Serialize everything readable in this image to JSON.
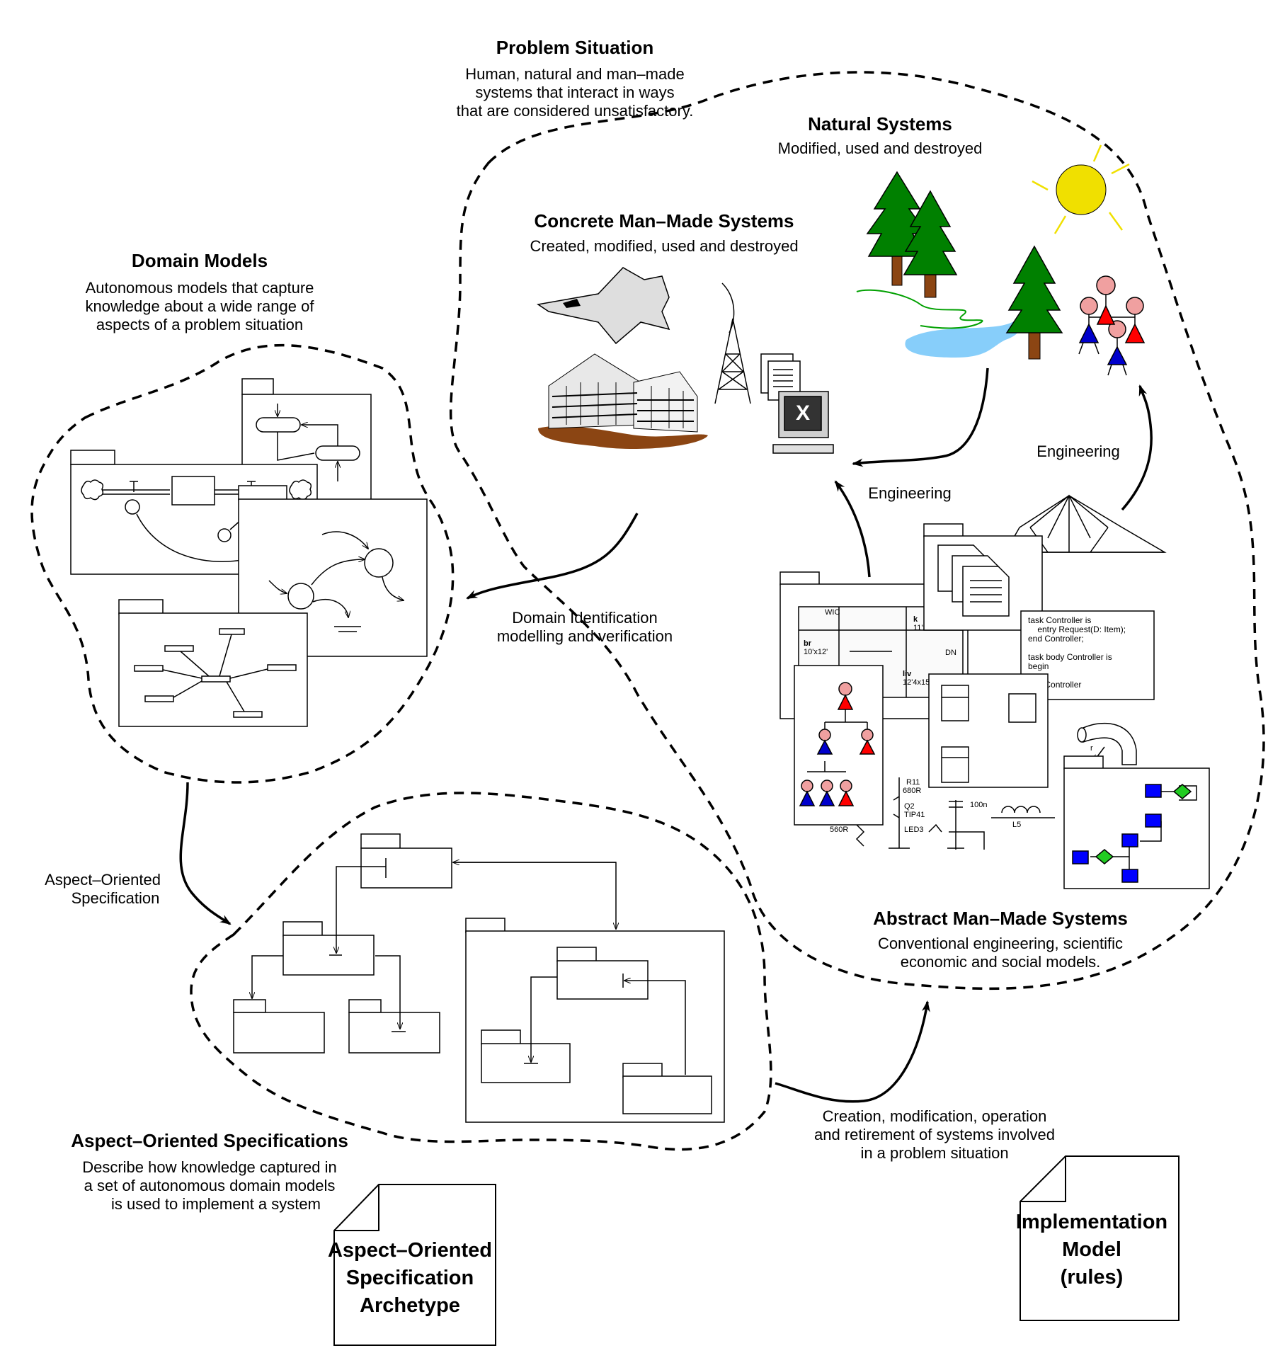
{
  "problem_situation": {
    "title": "Problem Situation",
    "lines": [
      "Human, natural and man–made",
      "systems that interact in ways",
      "that are considered unsatisfactory."
    ]
  },
  "natural_systems": {
    "title": "Natural Systems",
    "lines": [
      "Modified, used and destroyed"
    ]
  },
  "concrete_systems": {
    "title": "Concrete Man–Made Systems",
    "lines": [
      "Created, modified, used and destroyed"
    ]
  },
  "domain_models": {
    "title": "Domain Models",
    "lines": [
      "Autonomous models that capture",
      "knowledge about a wide range of",
      "aspects of a problem situation"
    ]
  },
  "abstract_systems": {
    "title": "Abstract Man–Made Systems",
    "lines": [
      "Conventional engineering, scientific",
      "economic and social models."
    ]
  },
  "aspect_specs": {
    "title": "Aspect–Oriented Specifications",
    "lines": [
      "Describe how knowledge captured in",
      "a set of autonomous domain models",
      "is used to implement a system"
    ]
  },
  "edge_labels": {
    "engineering_left": "Engineering",
    "engineering_right": "Engineering",
    "domain_identification": [
      "Domain Identification",
      "modelling and verification"
    ],
    "aspect_oriented_spec": [
      "Aspect–Oriented",
      "Specification"
    ],
    "creation": [
      "Creation, modification, operation",
      "and retirement of systems involved",
      "in a problem situation"
    ]
  },
  "documents": {
    "archetype": [
      "Aspect–Oriented",
      "Specification",
      "Archetype"
    ],
    "implementation": [
      "Implementation",
      "Model",
      "(rules)"
    ]
  },
  "floorplan_labels": {
    "room1": "br",
    "room1_size": "10'x12'",
    "room2": "k",
    "room2_size": "11'2x6",
    "room3": "liv",
    "room3_size": "12'4x15",
    "wic": "WIC",
    "dn": "DN"
  },
  "circuit_labels": {
    "r11": "R11",
    "r11_val": "680R",
    "q2": "Q2",
    "q2_val": "TIP41",
    "led": "LED3",
    "r_low": "560R",
    "cap": "100n",
    "ind": "L5"
  },
  "code_lines": [
    "task Controller is",
    "    entry Request(D: Item);",
    "end Controller;",
    "",
    "task body Controller is",
    "begin",
    "    ...",
    "end Controller"
  ],
  "pipe_label": "r",
  "icons": {
    "sun": "sun-icon",
    "tree": "tree-icon",
    "lake": "lake-icon",
    "people": "people-icon",
    "jet": "jet-icon",
    "building": "building-icon",
    "tower": "tower-icon",
    "computer": "computer-icon",
    "screen_glyph": "X"
  },
  "colors": {
    "tree": "#008000",
    "trunk": "#8b4513",
    "sun": "#f0e000",
    "lake": "#87cefa",
    "person_red": "#ff0000",
    "person_blue": "#0000cc",
    "head": "#f0a0a0",
    "gem": "#22cc22",
    "square": "#0000ff",
    "grass": "#00a000"
  }
}
